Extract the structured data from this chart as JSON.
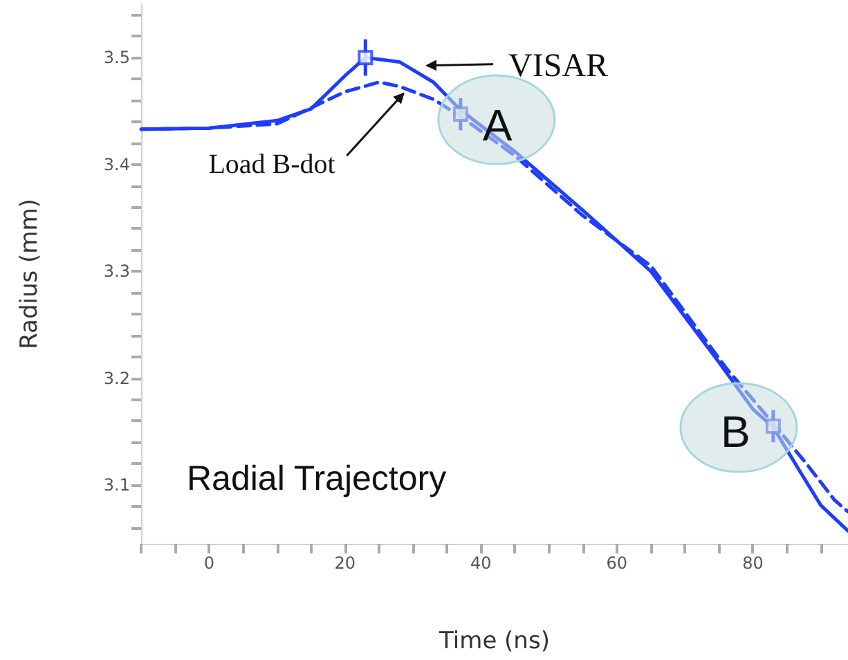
{
  "chart_data": {
    "type": "line",
    "xlabel": "Time (ns)",
    "ylabel": "Radius (mm)",
    "xlim": [
      -10,
      94
    ],
    "ylim": [
      3.045,
      3.55
    ],
    "xticks": [
      {
        "value": -10,
        "label": null
      },
      {
        "value": -5,
        "label": null
      },
      0,
      {
        "value": 5,
        "label": null
      },
      {
        "value": 10,
        "label": null
      },
      {
        "value": 15,
        "label": null
      },
      20,
      {
        "value": 25,
        "label": null
      },
      {
        "value": 30,
        "label": null
      },
      {
        "value": 35,
        "label": null
      },
      40,
      {
        "value": 45,
        "label": null
      },
      {
        "value": 50,
        "label": null
      },
      {
        "value": 55,
        "label": null
      },
      60,
      {
        "value": 65,
        "label": null
      },
      {
        "value": 70,
        "label": null
      },
      {
        "value": 75,
        "label": null
      },
      80,
      {
        "value": 85,
        "label": null
      },
      {
        "value": 90,
        "label": null
      }
    ],
    "yticks": [
      {
        "value": 3.06,
        "label": null
      },
      {
        "value": 3.08,
        "label": null
      },
      {
        "value": 3.1,
        "label": "3.1"
      },
      {
        "value": 3.12,
        "label": null
      },
      {
        "value": 3.14,
        "label": null
      },
      {
        "value": 3.16,
        "label": null
      },
      {
        "value": 3.18,
        "label": null
      },
      {
        "value": 3.2,
        "label": "3.2"
      },
      {
        "value": 3.22,
        "label": null
      },
      {
        "value": 3.24,
        "label": null
      },
      {
        "value": 3.26,
        "label": null
      },
      {
        "value": 3.28,
        "label": null
      },
      {
        "value": 3.3,
        "label": "3.3"
      },
      {
        "value": 3.32,
        "label": null
      },
      {
        "value": 3.34,
        "label": null
      },
      {
        "value": 3.36,
        "label": null
      },
      {
        "value": 3.38,
        "label": null
      },
      {
        "value": 3.4,
        "label": "3.4"
      },
      {
        "value": 3.42,
        "label": null
      },
      {
        "value": 3.44,
        "label": null
      },
      {
        "value": 3.46,
        "label": null
      },
      {
        "value": 3.48,
        "label": null
      },
      {
        "value": 3.5,
        "label": "3.5"
      },
      {
        "value": 3.52,
        "label": null
      },
      {
        "value": 3.54,
        "label": null
      }
    ],
    "grid": false,
    "series": [
      {
        "color": "#1f3dff",
        "line_style": "solid",
        "marker": "none",
        "x": [
          -10,
          0,
          10,
          15,
          20,
          23,
          28,
          33,
          37,
          45,
          55,
          65,
          75,
          80,
          83,
          87,
          90,
          94
        ],
        "values": [
          3.433,
          3.434,
          3.441,
          3.452,
          3.483,
          3.5,
          3.496,
          3.477,
          3.451,
          3.412,
          3.357,
          3.3,
          3.215,
          3.171,
          3.154,
          3.112,
          3.081,
          3.057
        ]
      },
      {
        "color": "#1f3dff",
        "line_style": "dashed",
        "marker": "none",
        "x": [
          -10,
          0,
          10,
          20,
          25,
          28,
          33,
          37,
          45,
          55,
          65,
          76,
          80,
          84,
          88,
          92,
          94
        ],
        "values": [
          3.433,
          3.434,
          3.438,
          3.468,
          3.477,
          3.473,
          3.461,
          3.445,
          3.408,
          3.352,
          3.305,
          3.21,
          3.18,
          3.15,
          3.119,
          3.086,
          3.075
        ]
      },
      {
        "type": "scatter",
        "color": "#1f3dff",
        "marker": "square",
        "x": [
          23,
          37,
          83
        ],
        "values": [
          3.5,
          3.447,
          3.155
        ],
        "errors": [
          0.017,
          0.015,
          0.015
        ]
      }
    ],
    "annotations": [
      {
        "text": "VISAR",
        "x": 30,
        "y": 3.49
      },
      {
        "text": "Load B-dot",
        "x": 28,
        "y": 3.473
      },
      {
        "text": "A",
        "x": 37,
        "y": 3.447
      },
      {
        "text": "B",
        "x": 83,
        "y": 3.155
      },
      "Radial Trajectory"
    ]
  }
}
